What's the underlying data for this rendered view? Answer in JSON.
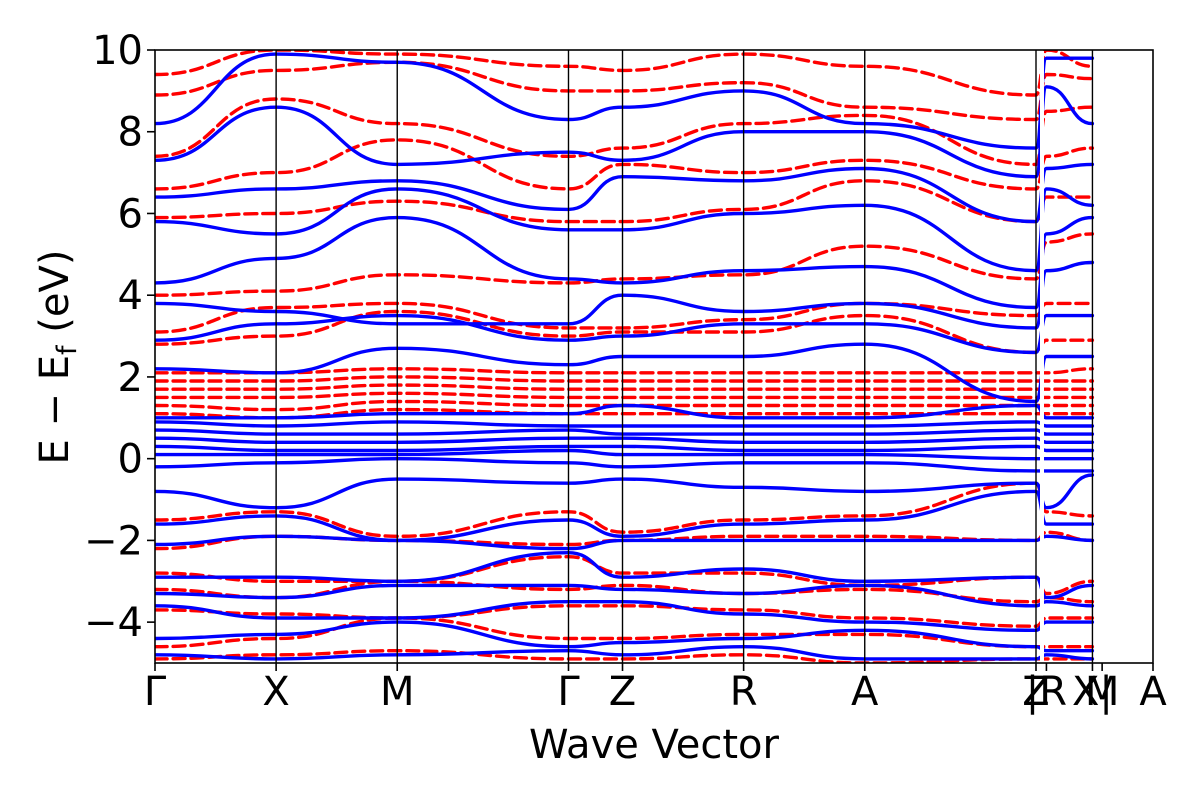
{
  "chart_data": {
    "type": "line",
    "title": "",
    "xlabel": "Wave Vector",
    "ylabel": {
      "main": "E − E",
      "sub": "f",
      "unit": " (eV)"
    },
    "ylim": [
      -5,
      10
    ],
    "y_ticks": [
      -4,
      -2,
      0,
      2,
      4,
      6,
      8,
      10
    ],
    "y_tick_labels": [
      "−4",
      "−2",
      "0",
      "2",
      "4",
      "6",
      "8",
      "10"
    ],
    "kpath": [
      {
        "label": "Γ",
        "pos": 0.0
      },
      {
        "label": "X",
        "pos": 0.5
      },
      {
        "label": "M",
        "pos": 1.0
      },
      {
        "label": "Γ",
        "pos": 1.707
      },
      {
        "label": "Z",
        "pos": 1.93
      },
      {
        "label": "R",
        "pos": 2.43
      },
      {
        "label": "A",
        "pos": 2.93
      },
      {
        "label": "Z",
        "pos": 3.637
      },
      {
        "label": "|R",
        "pos": 3.68
      },
      {
        "label": "X|",
        "pos": 3.87
      },
      {
        "label": "M",
        "pos": 3.91
      },
      {
        "label": "A",
        "pos": 4.12
      }
    ],
    "high_symmetry_lines": [
      0.5,
      1.0,
      1.707,
      1.93,
      2.43,
      2.93,
      3.637,
      3.87
    ],
    "segment_breaks": [
      3.637,
      3.87
    ],
    "legend": "none",
    "grid": false,
    "colors": {
      "series_1": "#0000ff",
      "series_2": "#ff0000"
    },
    "series": [
      {
        "style": "solid",
        "color": "#0000ff",
        "bands": [
          [
            -4.8,
            -4.9,
            -4.8,
            -4.7,
            -4.8,
            -4.6,
            -4.9,
            -4.9,
            -4.8,
            -4.9
          ],
          [
            -4.4,
            -4.3,
            -4.0,
            -4.6,
            -4.5,
            -4.4,
            -4.2,
            -4.6,
            -4.7,
            -4.7
          ],
          [
            -3.6,
            -3.9,
            -3.9,
            -3.5,
            -3.5,
            -3.8,
            -4.0,
            -4.2,
            -4.0,
            -4.0
          ],
          [
            -3.3,
            -3.4,
            -3.1,
            -3.1,
            -3.2,
            -3.3,
            -3.1,
            -3.6,
            -3.5,
            -3.6
          ],
          [
            -2.9,
            -2.9,
            -3.0,
            -2.3,
            -2.9,
            -2.7,
            -3.0,
            -2.9,
            -3.4,
            -3.1
          ],
          [
            -2.1,
            -1.9,
            -2.0,
            -2.2,
            -2.0,
            -2.0,
            -2.0,
            -2.0,
            -1.9,
            -2.0
          ],
          [
            -1.6,
            -1.4,
            -2.0,
            -1.5,
            -1.9,
            -1.6,
            -1.5,
            -0.8,
            -1.6,
            -1.6
          ],
          [
            -0.8,
            -1.2,
            -0.5,
            -0.6,
            -0.5,
            -0.7,
            -0.8,
            -0.6,
            -1.2,
            -0.4
          ],
          [
            -0.2,
            -0.1,
            0.0,
            -0.1,
            -0.2,
            -0.1,
            -0.1,
            -0.3,
            -0.3,
            -0.3
          ],
          [
            0.1,
            0.1,
            0.1,
            0.2,
            0.1,
            0.1,
            0.1,
            0.0,
            0.0,
            0.0
          ],
          [
            0.3,
            0.2,
            0.2,
            0.3,
            0.3,
            0.2,
            0.2,
            0.3,
            0.2,
            0.2
          ],
          [
            0.5,
            0.4,
            0.4,
            0.5,
            0.5,
            0.4,
            0.4,
            0.5,
            0.4,
            0.4
          ],
          [
            0.7,
            0.6,
            0.6,
            0.7,
            0.6,
            0.6,
            0.6,
            0.7,
            0.6,
            0.6
          ],
          [
            0.9,
            0.8,
            0.9,
            0.8,
            0.8,
            0.8,
            0.8,
            0.9,
            0.8,
            0.8
          ],
          [
            1.0,
            1.0,
            1.1,
            1.1,
            1.3,
            1.0,
            1.0,
            1.3,
            1.0,
            1.0
          ],
          [
            2.2,
            2.1,
            2.7,
            2.3,
            2.5,
            2.5,
            2.8,
            1.4,
            2.5,
            2.5
          ],
          [
            2.9,
            3.3,
            3.5,
            2.9,
            3.0,
            3.3,
            3.3,
            2.6,
            3.5,
            3.5
          ],
          [
            3.8,
            3.6,
            3.3,
            3.3,
            4.0,
            3.6,
            3.8,
            3.2,
            4.6,
            4.8
          ],
          [
            4.3,
            4.9,
            5.9,
            4.4,
            4.3,
            4.6,
            4.7,
            3.7,
            5.5,
            5.9
          ],
          [
            5.8,
            5.5,
            6.6,
            5.6,
            5.6,
            6.0,
            6.2,
            4.6,
            6.6,
            6.2
          ],
          [
            6.4,
            6.6,
            6.8,
            6.1,
            6.9,
            6.8,
            7.1,
            5.8,
            7.1,
            7.2
          ],
          [
            7.3,
            8.6,
            7.2,
            7.5,
            7.3,
            8.0,
            8.0,
            6.9,
            9.1,
            8.2
          ],
          [
            8.2,
            9.9,
            9.7,
            8.3,
            8.6,
            9.0,
            8.2,
            7.6,
            9.8,
            9.8
          ]
        ]
      },
      {
        "style": "dashed",
        "color": "#ff0000",
        "bands": [
          [
            -4.9,
            -4.8,
            -4.7,
            -4.9,
            -4.9,
            -4.8,
            -5.0,
            -4.9,
            -4.9,
            -4.9
          ],
          [
            -4.6,
            -4.4,
            -3.9,
            -4.4,
            -4.4,
            -4.3,
            -4.3,
            -4.6,
            -4.6,
            -4.6
          ],
          [
            -3.7,
            -3.8,
            -3.9,
            -3.6,
            -3.6,
            -3.7,
            -3.9,
            -4.1,
            -3.9,
            -3.9
          ],
          [
            -3.2,
            -3.4,
            -3.0,
            -3.2,
            -3.1,
            -3.3,
            -3.2,
            -3.5,
            -3.4,
            -3.5
          ],
          [
            -2.8,
            -3.0,
            -3.0,
            -2.4,
            -2.8,
            -2.8,
            -3.1,
            -2.9,
            -3.3,
            -3.0
          ],
          [
            -2.2,
            -1.9,
            -2.0,
            -2.1,
            -2.0,
            -1.9,
            -1.9,
            -2.0,
            -1.8,
            -2.0
          ],
          [
            -1.5,
            -1.3,
            -1.9,
            -1.3,
            -1.8,
            -1.5,
            -1.4,
            -0.6,
            -1.3,
            -1.4
          ],
          [
            1.1,
            1.0,
            1.2,
            1.1,
            1.1,
            1.1,
            1.1,
            1.1,
            1.1,
            1.1
          ],
          [
            1.3,
            1.2,
            1.4,
            1.3,
            1.3,
            1.3,
            1.3,
            1.3,
            1.3,
            1.3
          ],
          [
            1.5,
            1.5,
            1.6,
            1.5,
            1.5,
            1.5,
            1.5,
            1.5,
            1.5,
            1.5
          ],
          [
            1.7,
            1.7,
            1.8,
            1.7,
            1.7,
            1.7,
            1.7,
            1.7,
            1.7,
            1.7
          ],
          [
            1.9,
            1.9,
            2.0,
            1.9,
            1.9,
            1.9,
            1.9,
            1.9,
            1.9,
            1.9
          ],
          [
            2.1,
            2.1,
            2.2,
            2.1,
            2.1,
            2.1,
            2.1,
            2.1,
            2.1,
            2.2
          ],
          [
            2.8,
            3.0,
            3.6,
            3.0,
            3.1,
            3.1,
            3.5,
            2.6,
            2.9,
            2.9
          ],
          [
            3.1,
            3.7,
            3.8,
            3.2,
            3.2,
            3.4,
            3.8,
            3.5,
            3.8,
            3.8
          ],
          [
            4.0,
            4.1,
            4.5,
            4.3,
            4.4,
            4.5,
            5.2,
            4.4,
            5.3,
            5.5
          ],
          [
            5.9,
            6.0,
            6.3,
            5.8,
            5.8,
            6.1,
            6.8,
            5.8,
            6.4,
            6.4
          ],
          [
            6.6,
            7.0,
            7.8,
            6.6,
            7.2,
            7.0,
            7.3,
            6.6,
            7.4,
            7.6
          ],
          [
            7.4,
            8.8,
            8.2,
            7.4,
            7.6,
            8.2,
            8.4,
            7.2,
            8.5,
            8.6
          ],
          [
            8.9,
            9.5,
            9.7,
            9.0,
            9.0,
            9.2,
            8.6,
            8.3,
            9.4,
            9.3
          ],
          [
            9.4,
            10.0,
            9.9,
            9.6,
            9.5,
            9.9,
            9.6,
            8.9,
            10.0,
            9.6
          ]
        ]
      }
    ]
  }
}
